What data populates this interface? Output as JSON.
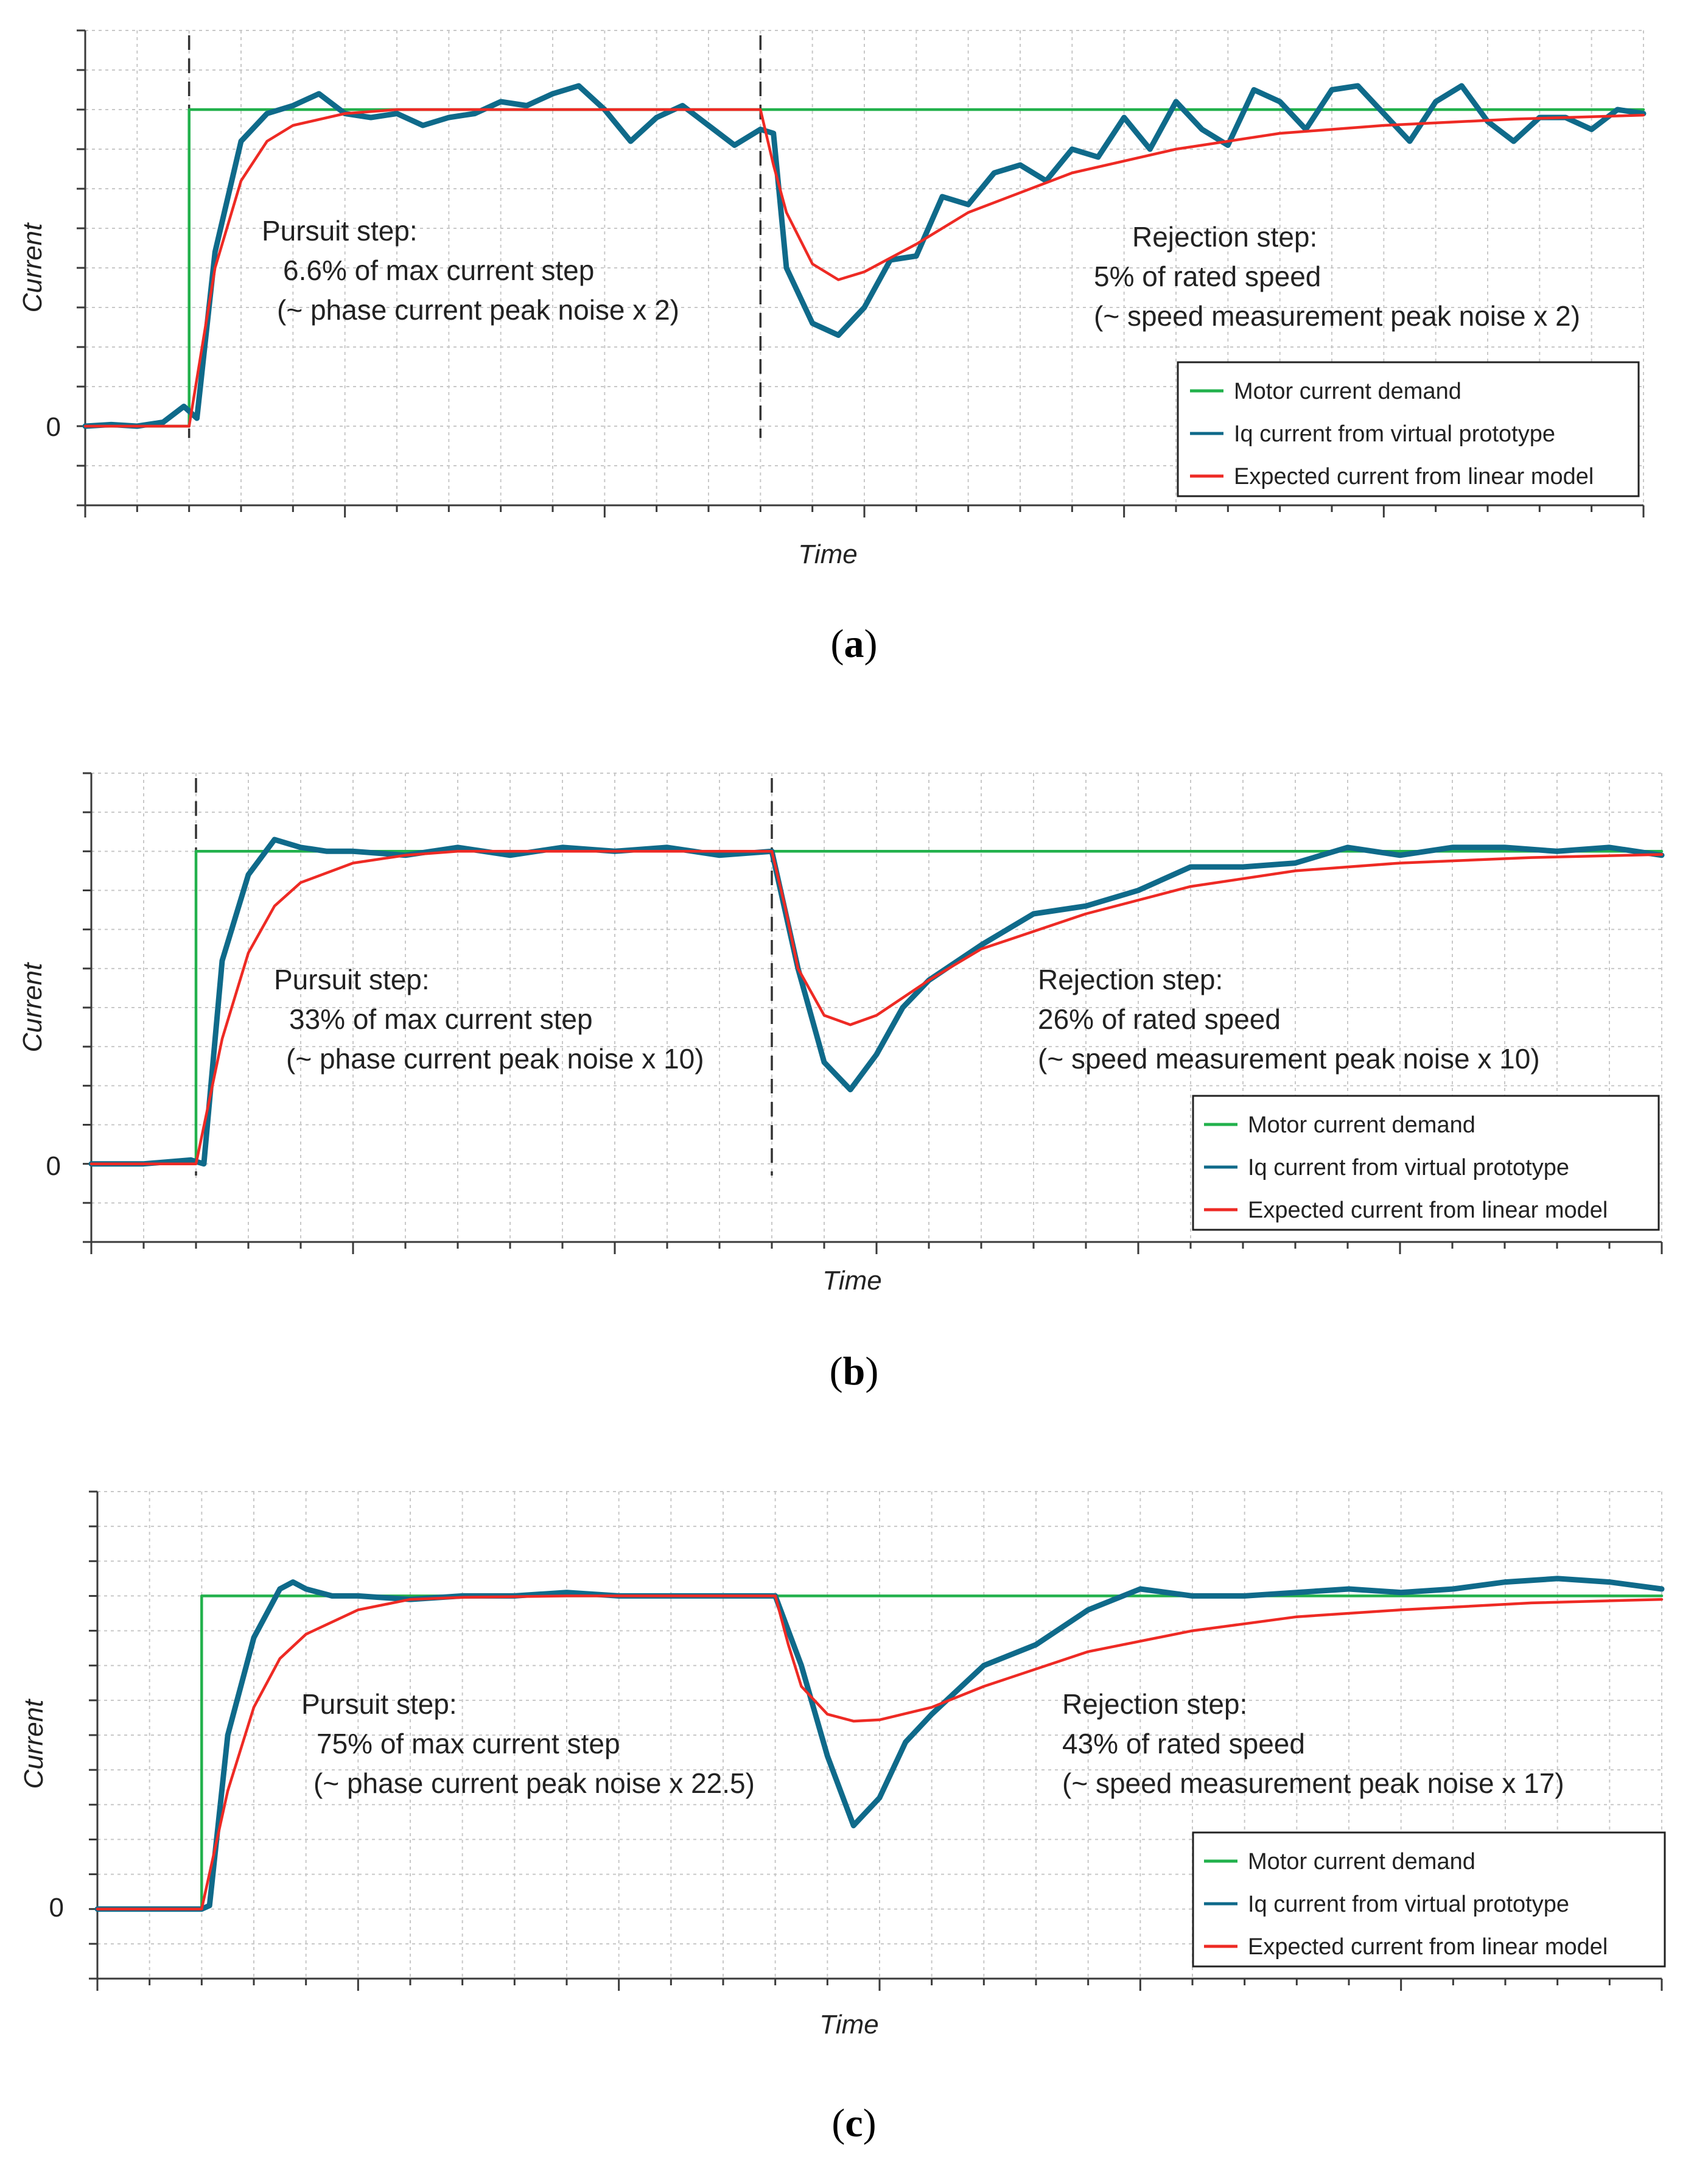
{
  "colors": {
    "demand": "#22b14c",
    "iq": "#0f6a8a",
    "model": "#ee2a24",
    "grid": "#c8c8c8",
    "axis": "#3a3a3a"
  },
  "panels": [
    {
      "caption_letter": "a",
      "caption_open": "(",
      "caption_close": ")",
      "chart_data": {
        "type": "line",
        "xlabel": "Time",
        "ylabel": "Current",
        "ytick_label": "0",
        "xlim": [
          0,
          60
        ],
        "ylim": [
          -1,
          5
        ],
        "step_times": [
          4,
          26
        ],
        "pursuit": {
          "title": "Pursuit step:",
          "line1": "6.6% of max current step",
          "line2": "(~ phase current peak noise x 2)"
        },
        "rejection": {
          "title": "Rejection step:",
          "line1": "5% of rated speed",
          "line2": "(~ speed measurement peak noise x 2)"
        },
        "legend": [
          "Motor current demand",
          "Iq current from virtual prototype",
          "Expected current from linear model"
        ],
        "legend_position": "bottom-right",
        "series": [
          {
            "name": "Motor current demand",
            "x": [
              0,
              4,
              4,
              60
            ],
            "values": [
              0,
              0,
              4,
              4
            ]
          },
          {
            "name": "Expected current from linear model",
            "x": [
              0,
              4,
              5,
              6,
              7,
              8,
              10,
              12,
              14,
              18,
              26,
              26.5,
              27,
              28,
              29,
              30,
              32,
              34,
              38,
              42,
              46,
              50,
              55,
              60
            ],
            "values": [
              0,
              0,
              2.0,
              3.1,
              3.6,
              3.8,
              3.95,
              4.0,
              4.0,
              4.0,
              4.0,
              3.3,
              2.7,
              2.05,
              1.85,
              1.95,
              2.3,
              2.7,
              3.2,
              3.5,
              3.7,
              3.8,
              3.88,
              3.93
            ]
          },
          {
            "name": "Iq current from virtual prototype",
            "x": [
              0,
              1,
              2,
              3,
              3.8,
              4.3,
              5,
              6,
              7,
              8,
              9,
              10,
              11,
              12,
              13,
              14,
              15,
              16,
              17,
              18,
              19,
              20,
              21,
              22,
              23,
              24,
              25,
              26,
              26.5,
              27,
              28,
              29,
              30,
              31,
              32,
              33,
              34,
              35,
              36,
              37,
              38,
              39,
              40,
              41,
              42,
              43,
              44,
              45,
              46,
              47,
              48,
              49,
              50,
              51,
              52,
              53,
              54,
              55,
              56,
              57,
              58,
              59,
              60
            ],
            "values": [
              0,
              0.02,
              0.0,
              0.05,
              0.25,
              0.1,
              2.2,
              3.6,
              3.95,
              4.05,
              4.2,
              3.95,
              3.9,
              3.95,
              3.8,
              3.9,
              3.95,
              4.1,
              4.05,
              4.2,
              4.3,
              4.0,
              3.6,
              3.9,
              4.05,
              3.8,
              3.55,
              3.75,
              3.7,
              2.0,
              1.3,
              1.15,
              1.5,
              2.1,
              2.15,
              2.9,
              2.8,
              3.2,
              3.3,
              3.1,
              3.5,
              3.4,
              3.9,
              3.5,
              4.1,
              3.75,
              3.55,
              4.25,
              4.1,
              3.75,
              4.25,
              4.3,
              3.95,
              3.6,
              4.1,
              4.3,
              3.85,
              3.6,
              3.9,
              3.9,
              3.75,
              4.0,
              3.95
            ]
          }
        ]
      }
    },
    {
      "caption_letter": "b",
      "caption_open": "(",
      "caption_close": ")",
      "chart_data": {
        "type": "line",
        "xlabel": "Time",
        "ylabel": "Current",
        "ytick_label": "0",
        "xlim": [
          0,
          60
        ],
        "ylim": [
          -1,
          5
        ],
        "step_times": [
          4,
          26
        ],
        "pursuit": {
          "title": "Pursuit step:",
          "line1": "33%  of max current step",
          "line2": "(~ phase current peak noise x 10)"
        },
        "rejection": {
          "title": "Rejection step:",
          "line1": "26% of rated speed",
          "line2": "(~ speed measurement peak noise x 10)"
        },
        "legend": [
          "Motor current demand",
          "Iq current from virtual prototype",
          "Expected current from linear model"
        ],
        "legend_position": "bottom-right",
        "series": [
          {
            "name": "Motor current demand",
            "x": [
              0,
              4,
              4,
              60
            ],
            "values": [
              0,
              0,
              4,
              4
            ]
          },
          {
            "name": "Expected current from linear model",
            "x": [
              0,
              4,
              5,
              6,
              7,
              8,
              10,
              12,
              14,
              18,
              26,
              26.5,
              27,
              28,
              29,
              30,
              32,
              34,
              38,
              42,
              46,
              50,
              55,
              60
            ],
            "values": [
              0,
              0,
              1.6,
              2.7,
              3.3,
              3.6,
              3.85,
              3.95,
              4.0,
              4.0,
              4.0,
              3.3,
              2.5,
              1.9,
              1.78,
              1.9,
              2.35,
              2.75,
              3.2,
              3.55,
              3.75,
              3.85,
              3.92,
              3.96
            ]
          },
          {
            "name": "Iq current from virtual prototype",
            "x": [
              0,
              2,
              3.8,
              4.3,
              5,
              6,
              7,
              8,
              9,
              10,
              12,
              14,
              16,
              18,
              20,
              22,
              24,
              26,
              27,
              28,
              29,
              30,
              31,
              32,
              34,
              36,
              38,
              40,
              42,
              44,
              46,
              48,
              50,
              52,
              54,
              56,
              58,
              60
            ],
            "values": [
              0,
              0,
              0.05,
              0.0,
              2.6,
              3.7,
              4.15,
              4.05,
              4.0,
              4.0,
              3.95,
              4.05,
              3.95,
              4.05,
              4.0,
              4.05,
              3.95,
              4.0,
              2.5,
              1.3,
              0.95,
              1.4,
              2.0,
              2.35,
              2.8,
              3.2,
              3.3,
              3.5,
              3.8,
              3.8,
              3.85,
              4.05,
              3.95,
              4.05,
              4.05,
              4.0,
              4.05,
              3.95
            ]
          }
        ]
      }
    },
    {
      "caption_letter": "c",
      "caption_open": "(",
      "caption_close": ")",
      "chart_data": {
        "type": "line",
        "xlabel": "Time",
        "ylabel": "Current",
        "ytick_label": "0",
        "xlim": [
          0,
          60
        ],
        "ylim": [
          -1,
          6
        ],
        "step_times": [
          4,
          26
        ],
        "pursuit": {
          "title": "Pursuit step:",
          "line1": "75%  of max current step",
          "line2": "(~ phase current peak noise x 22.5)"
        },
        "rejection": {
          "title": "Rejection step:",
          "line1": "43% of rated speed",
          "line2": "(~ speed measurement peak noise x 17)"
        },
        "legend": [
          "Motor current demand",
          "Iq current from virtual prototype",
          "Expected current from linear model"
        ],
        "legend_position": "bottom-right",
        "series": [
          {
            "name": "Motor current demand",
            "x": [
              0,
              4,
              4,
              60
            ],
            "values": [
              0,
              0,
              4.5,
              4.5
            ]
          },
          {
            "name": "Expected current from linear model",
            "x": [
              0,
              4,
              5,
              6,
              7,
              8,
              10,
              12,
              14,
              18,
              26,
              26.5,
              27,
              28,
              29,
              30,
              32,
              34,
              38,
              42,
              46,
              50,
              55,
              60
            ],
            "values": [
              0,
              0,
              1.7,
              2.9,
              3.6,
              3.95,
              4.3,
              4.45,
              4.48,
              4.5,
              4.5,
              3.8,
              3.2,
              2.8,
              2.7,
              2.72,
              2.9,
              3.2,
              3.7,
              4.0,
              4.2,
              4.3,
              4.4,
              4.45
            ]
          },
          {
            "name": "Iq current from virtual prototype",
            "x": [
              0,
              2,
              4,
              4.3,
              5,
              6,
              7,
              7.5,
              8,
              9,
              10,
              12,
              14,
              16,
              18,
              20,
              22,
              24,
              26,
              27,
              28,
              29,
              30,
              31,
              32,
              34,
              36,
              38,
              40,
              42,
              44,
              46,
              48,
              50,
              52,
              54,
              56,
              58,
              60
            ],
            "values": [
              0,
              0,
              0,
              0.05,
              2.5,
              3.9,
              4.6,
              4.7,
              4.6,
              4.5,
              4.5,
              4.45,
              4.5,
              4.5,
              4.55,
              4.5,
              4.5,
              4.5,
              4.5,
              3.5,
              2.2,
              1.2,
              1.6,
              2.4,
              2.8,
              3.5,
              3.8,
              4.3,
              4.6,
              4.5,
              4.5,
              4.55,
              4.6,
              4.55,
              4.6,
              4.7,
              4.75,
              4.7,
              4.6
            ]
          }
        ]
      }
    }
  ]
}
